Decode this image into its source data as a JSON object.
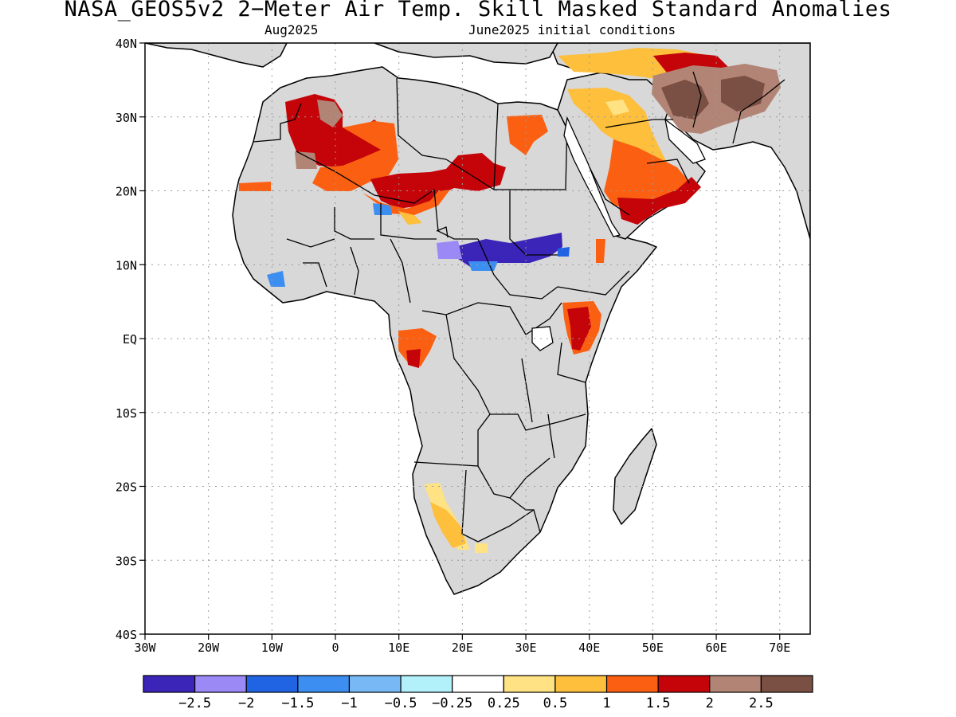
{
  "title": "NASA_GEOS5v2 2−Meter Air Temp. Skill Masked Standard Anomalies",
  "subtitle_left": "Aug2025",
  "subtitle_right": "June2025 initial conditions",
  "lat_labels": [
    "40N",
    "30N",
    "20N",
    "10N",
    "EQ",
    "10S",
    "20S",
    "30S",
    "40S"
  ],
  "lon_labels": [
    "30W",
    "20W",
    "10W",
    "0",
    "10E",
    "20E",
    "30E",
    "40E",
    "50E",
    "60E",
    "70E"
  ],
  "colorbar": {
    "colors": [
      "#3b24b8",
      "#9b8af5",
      "#2064e4",
      "#3c8ff0",
      "#78b9f5",
      "#b2f0fa",
      "#ffffff",
      "#fee283",
      "#fdbf3c",
      "#fb6012",
      "#c40409",
      "#b28475",
      "#7a4f44"
    ],
    "labels": [
      "−2.5",
      "−2",
      "−1.5",
      "−1",
      "−0.5",
      "−0.25",
      "0.25",
      "0.5",
      "1",
      "1.5",
      "2",
      "2.5"
    ]
  },
  "colors": {
    "land_masked": "#d8d8d8",
    "ocean": "#ffffff",
    "grid": "#9a9a9a"
  }
}
